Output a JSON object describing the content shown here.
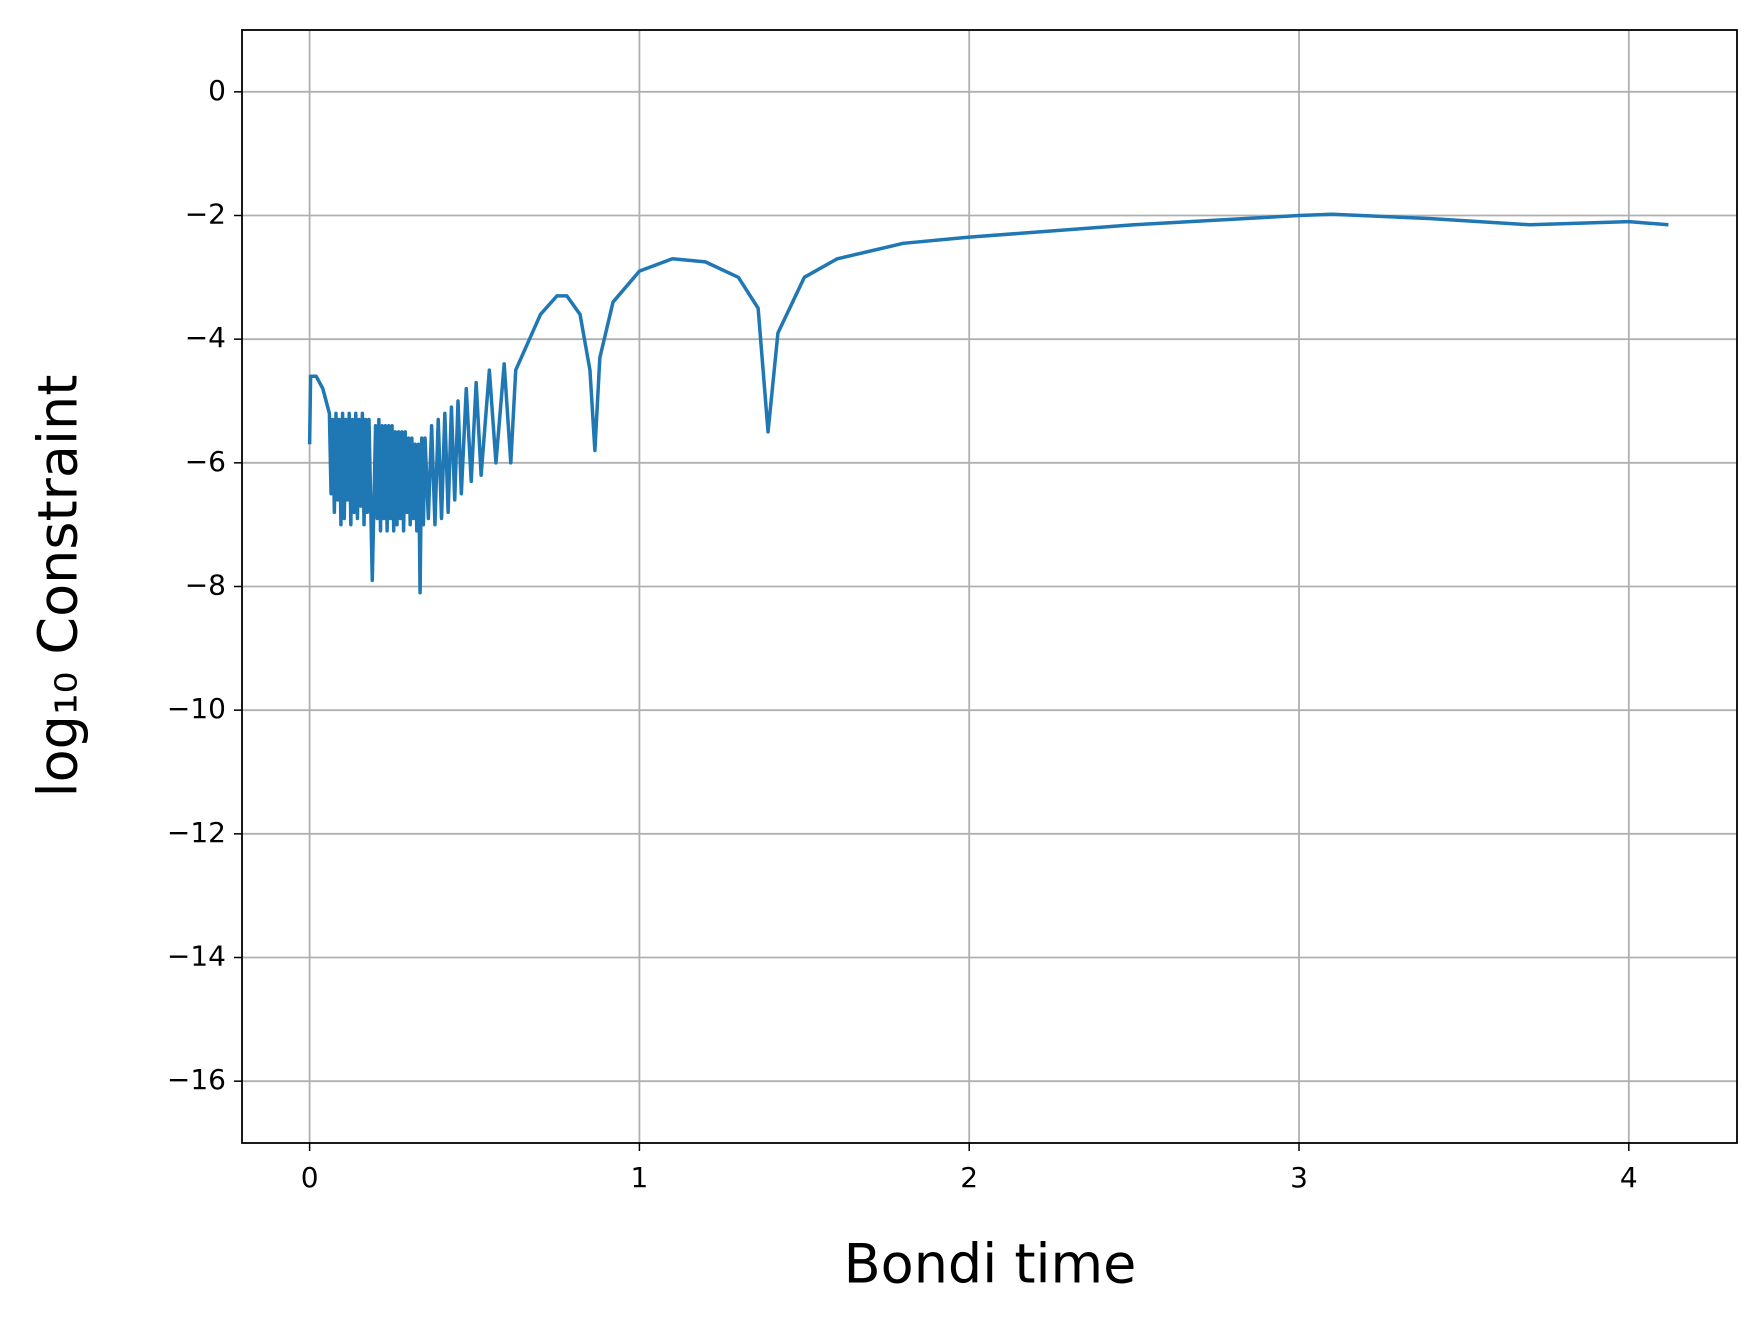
{
  "chart_data": {
    "type": "line",
    "xlabel": "Bondi time",
    "ylabel": "log₁₀ Constraint",
    "xlim": [
      -0.205,
      4.328
    ],
    "ylim": [
      -17,
      1
    ],
    "xticks": [
      0,
      1,
      2,
      3,
      4
    ],
    "yticks": [
      0,
      {
        "value": -2,
        "label": "−2"
      },
      {
        "value": -4,
        "label": "−4"
      },
      {
        "value": -6,
        "label": "−6"
      },
      {
        "value": -8,
        "label": "−8"
      },
      {
        "value": -10,
        "label": "−10"
      },
      {
        "value": -12,
        "label": "−12"
      },
      {
        "value": -14,
        "label": "−14"
      },
      {
        "value": -16,
        "label": "−16"
      }
    ],
    "grid": true,
    "x": [
      0,
      0.003,
      0.02,
      0.04,
      0.06,
      0.065,
      0.07,
      0.075,
      0.08,
      0.085,
      0.09,
      0.095,
      0.1,
      0.105,
      0.11,
      0.115,
      0.12,
      0.125,
      0.13,
      0.135,
      0.14,
      0.145,
      0.15,
      0.155,
      0.16,
      0.165,
      0.17,
      0.175,
      0.18,
      0.19,
      0.2,
      0.205,
      0.21,
      0.215,
      0.22,
      0.225,
      0.23,
      0.235,
      0.24,
      0.245,
      0.25,
      0.255,
      0.26,
      0.265,
      0.27,
      0.275,
      0.28,
      0.285,
      0.29,
      0.295,
      0.3,
      0.305,
      0.31,
      0.315,
      0.32,
      0.325,
      0.33,
      0.335,
      0.34,
      0.345,
      0.35,
      0.36,
      0.37,
      0.38,
      0.39,
      0.4,
      0.41,
      0.42,
      0.43,
      0.44,
      0.45,
      0.46,
      0.475,
      0.49,
      0.505,
      0.52,
      0.545,
      0.565,
      0.59,
      0.61,
      0.625,
      0.65,
      0.7,
      0.75,
      0.78,
      0.82,
      0.85,
      0.865,
      0.88,
      0.92,
      1.0,
      1.1,
      1.2,
      1.3,
      1.36,
      1.39,
      1.42,
      1.5,
      1.6,
      1.8,
      2.0,
      2.5,
      3.0,
      3.1,
      3.4,
      3.7,
      4.0,
      4.12
    ],
    "series": [
      {
        "color": "#1f77b4",
        "values": [
          -5.7,
          -4.6,
          -4.6,
          -4.8,
          -5.2,
          -6.5,
          -5.3,
          -6.8,
          -5.2,
          -6.6,
          -5.3,
          -7.0,
          -5.2,
          -6.9,
          -5.3,
          -6.6,
          -5.2,
          -7.0,
          -5.3,
          -6.8,
          -5.2,
          -6.9,
          -5.3,
          -6.7,
          -5.2,
          -7.0,
          -5.3,
          -6.8,
          -5.3,
          -7.9,
          -5.4,
          -6.9,
          -5.3,
          -7.1,
          -5.4,
          -6.9,
          -5.4,
          -7.1,
          -5.4,
          -6.9,
          -5.4,
          -7.1,
          -5.5,
          -7.0,
          -5.5,
          -6.9,
          -5.5,
          -7.1,
          -5.5,
          -6.8,
          -5.6,
          -7.0,
          -5.6,
          -6.9,
          -5.7,
          -7.1,
          -5.7,
          -8.1,
          -5.6,
          -7.0,
          -5.6,
          -6.9,
          -5.4,
          -7.0,
          -5.3,
          -6.9,
          -5.2,
          -6.8,
          -5.1,
          -6.6,
          -5.0,
          -6.5,
          -4.8,
          -6.3,
          -4.7,
          -6.2,
          -4.5,
          -6.0,
          -4.4,
          -6.0,
          -4.5,
          -4.2,
          -3.6,
          -3.3,
          -3.3,
          -3.6,
          -4.5,
          -5.8,
          -4.3,
          -3.4,
          -2.9,
          -2.7,
          -2.75,
          -3.0,
          -3.5,
          -5.5,
          -3.9,
          -3.0,
          -2.7,
          -2.45,
          -2.35,
          -2.15,
          -2.0,
          -1.98,
          -2.05,
          -2.15,
          -2.1,
          -2.15
        ]
      }
    ]
  }
}
